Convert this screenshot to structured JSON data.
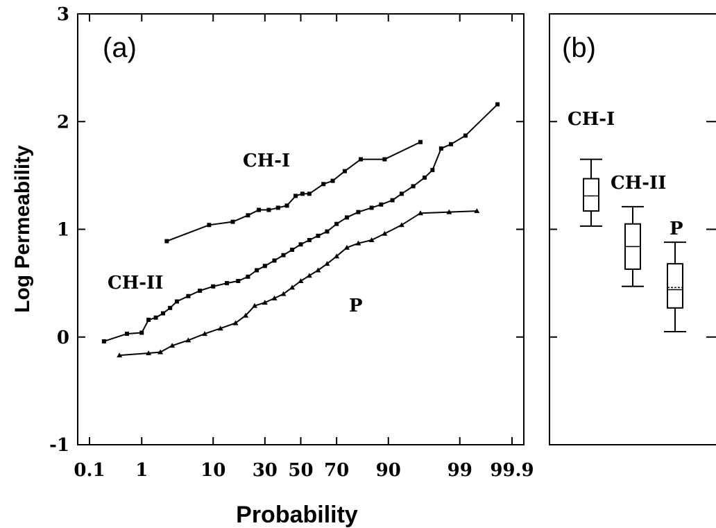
{
  "chart_data": [
    {
      "type": "line",
      "panel_label": "(a)",
      "xlabel": "Probability",
      "ylabel": "Log Permeability",
      "x_scale": "normal-probability",
      "x_ticks": [
        0.1,
        1,
        10,
        30,
        50,
        70,
        90,
        99,
        99.9
      ],
      "x_tick_labels": [
        "0.1",
        "1",
        "10",
        "30",
        "50",
        "70",
        "90",
        "99",
        "99.9"
      ],
      "ylim": [
        -1,
        3
      ],
      "y_ticks": [
        -1,
        0,
        1,
        2,
        3
      ],
      "y_tick_labels": [
        "-1",
        "0",
        "1",
        "2",
        "3"
      ],
      "grid": false,
      "legend": "none",
      "series": [
        {
          "name": "CH-I",
          "marker": "square",
          "points": [
            {
              "x": 2.5,
              "y": 0.89
            },
            {
              "x": 9,
              "y": 1.04
            },
            {
              "x": 16,
              "y": 1.07
            },
            {
              "x": 22,
              "y": 1.13
            },
            {
              "x": 27,
              "y": 1.18
            },
            {
              "x": 32,
              "y": 1.18
            },
            {
              "x": 37,
              "y": 1.2
            },
            {
              "x": 42,
              "y": 1.22
            },
            {
              "x": 47,
              "y": 1.31
            },
            {
              "x": 51,
              "y": 1.33
            },
            {
              "x": 55,
              "y": 1.33
            },
            {
              "x": 63,
              "y": 1.42
            },
            {
              "x": 68,
              "y": 1.45
            },
            {
              "x": 74,
              "y": 1.54
            },
            {
              "x": 81,
              "y": 1.65
            },
            {
              "x": 89,
              "y": 1.65
            },
            {
              "x": 96,
              "y": 1.81
            }
          ]
        },
        {
          "name": "CH-II",
          "marker": "square",
          "points": [
            {
              "x": 0.2,
              "y": -0.04
            },
            {
              "x": 0.55,
              "y": 0.03
            },
            {
              "x": 1,
              "y": 0.04
            },
            {
              "x": 1.3,
              "y": 0.16
            },
            {
              "x": 1.7,
              "y": 0.18
            },
            {
              "x": 2.2,
              "y": 0.22
            },
            {
              "x": 2.8,
              "y": 0.27
            },
            {
              "x": 3.5,
              "y": 0.33
            },
            {
              "x": 5,
              "y": 0.38
            },
            {
              "x": 7,
              "y": 0.43
            },
            {
              "x": 10,
              "y": 0.47
            },
            {
              "x": 14,
              "y": 0.5
            },
            {
              "x": 18,
              "y": 0.52
            },
            {
              "x": 22,
              "y": 0.56
            },
            {
              "x": 26,
              "y": 0.62
            },
            {
              "x": 30,
              "y": 0.66
            },
            {
              "x": 35,
              "y": 0.71
            },
            {
              "x": 40,
              "y": 0.76
            },
            {
              "x": 45,
              "y": 0.81
            },
            {
              "x": 50,
              "y": 0.86
            },
            {
              "x": 55,
              "y": 0.9
            },
            {
              "x": 60,
              "y": 0.94
            },
            {
              "x": 65,
              "y": 0.98
            },
            {
              "x": 70,
              "y": 1.05
            },
            {
              "x": 75,
              "y": 1.11
            },
            {
              "x": 80,
              "y": 1.16
            },
            {
              "x": 85,
              "y": 1.2
            },
            {
              "x": 88,
              "y": 1.23
            },
            {
              "x": 91,
              "y": 1.27
            },
            {
              "x": 93,
              "y": 1.33
            },
            {
              "x": 95,
              "y": 1.4
            },
            {
              "x": 96.5,
              "y": 1.48
            },
            {
              "x": 97.3,
              "y": 1.55
            },
            {
              "x": 98,
              "y": 1.75
            },
            {
              "x": 98.6,
              "y": 1.79
            },
            {
              "x": 99.2,
              "y": 1.87
            },
            {
              "x": 99.8,
              "y": 2.16
            }
          ]
        },
        {
          "name": "P",
          "marker": "triangle",
          "points": [
            {
              "x": 0.4,
              "y": -0.17
            },
            {
              "x": 1.3,
              "y": -0.15
            },
            {
              "x": 2,
              "y": -0.14
            },
            {
              "x": 3,
              "y": -0.08
            },
            {
              "x": 5,
              "y": -0.03
            },
            {
              "x": 8,
              "y": 0.03
            },
            {
              "x": 12,
              "y": 0.08
            },
            {
              "x": 17,
              "y": 0.13
            },
            {
              "x": 21,
              "y": 0.2
            },
            {
              "x": 25,
              "y": 0.29
            },
            {
              "x": 30,
              "y": 0.32
            },
            {
              "x": 35,
              "y": 0.36
            },
            {
              "x": 40,
              "y": 0.4
            },
            {
              "x": 45,
              "y": 0.46
            },
            {
              "x": 50,
              "y": 0.52
            },
            {
              "x": 55,
              "y": 0.57
            },
            {
              "x": 60,
              "y": 0.62
            },
            {
              "x": 65,
              "y": 0.68
            },
            {
              "x": 70,
              "y": 0.75
            },
            {
              "x": 75,
              "y": 0.83
            },
            {
              "x": 80,
              "y": 0.87
            },
            {
              "x": 85,
              "y": 0.9
            },
            {
              "x": 89,
              "y": 0.96
            },
            {
              "x": 93,
              "y": 1.04
            },
            {
              "x": 96,
              "y": 1.15
            },
            {
              "x": 98.5,
              "y": 1.16
            },
            {
              "x": 99.5,
              "y": 1.17
            }
          ]
        }
      ]
    },
    {
      "type": "box",
      "panel_label": "(b)",
      "ylim": [
        -1,
        3
      ],
      "y_ticks": [
        -1,
        0,
        1,
        2,
        3
      ],
      "boxes": [
        {
          "name": "CH-I",
          "whisker_low": 1.03,
          "q1": 1.17,
          "median": 1.31,
          "q3": 1.47,
          "whisker_high": 1.65
        },
        {
          "name": "CH-II",
          "whisker_low": 0.47,
          "q1": 0.63,
          "median": 0.84,
          "q3": 1.05,
          "whisker_high": 1.21
        },
        {
          "name": "P",
          "whisker_low": 0.05,
          "q1": 0.27,
          "median": 0.44,
          "mean": 0.46,
          "q3": 0.68,
          "whisker_high": 0.88
        }
      ]
    }
  ]
}
